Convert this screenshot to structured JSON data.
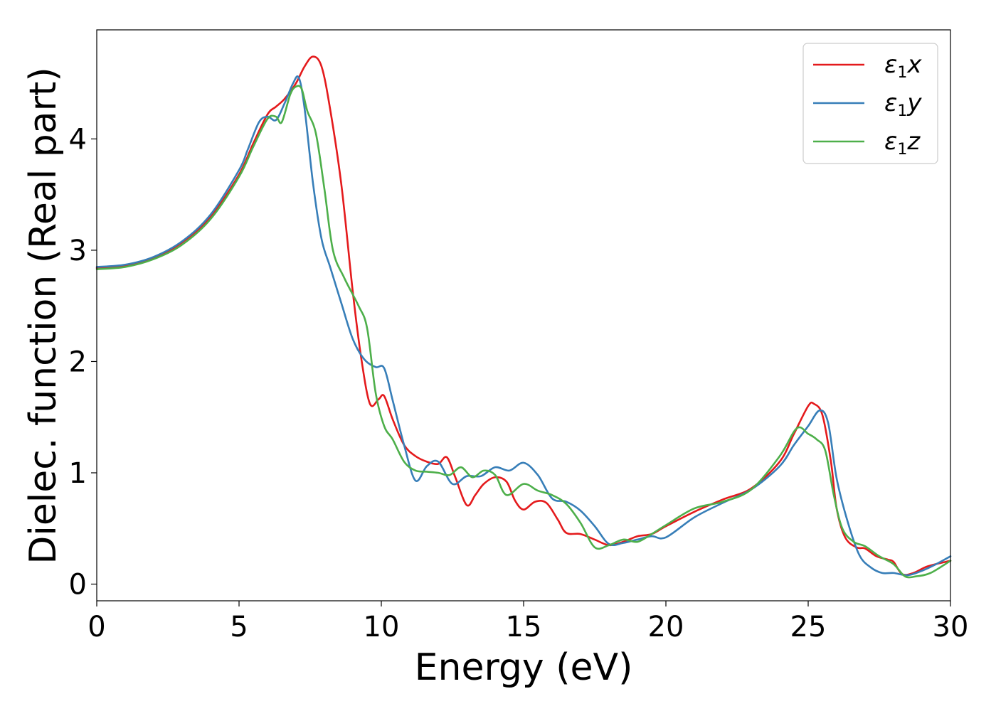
{
  "chart_data": {
    "type": "line",
    "xlabel": "Energy (eV)",
    "ylabel": "Dielec. function (Real part)",
    "xlim": [
      0,
      30
    ],
    "ylim": [
      -0.15,
      4.98
    ],
    "xticks": [
      "0",
      "5",
      "10",
      "15",
      "20",
      "25",
      "30"
    ],
    "yticks": [
      "0",
      "1",
      "2",
      "3",
      "4"
    ],
    "grid": false,
    "legend_position": "top-right",
    "series": [
      {
        "name": "ε1x",
        "label_base": "ε",
        "label_sub": "1",
        "label_suffix": "x",
        "color": "#e41a1c",
        "x": [
          0,
          1,
          2,
          3,
          4,
          5,
          5.5,
          6,
          6.3,
          6.6,
          7,
          7.3,
          7.6,
          7.9,
          8.2,
          8.6,
          9,
          9.3,
          9.6,
          9.9,
          10.1,
          10.4,
          10.8,
          11.2,
          11.6,
          12,
          12.3,
          12.6,
          13,
          13.3,
          13.6,
          14,
          14.4,
          14.7,
          15,
          15.4,
          15.8,
          16.2,
          16.5,
          17,
          17.5,
          18,
          18.5,
          19,
          19.5,
          20,
          21,
          22,
          23,
          24,
          24.5,
          25,
          25.2,
          25.5,
          25.8,
          26,
          26.3,
          26.7,
          27,
          27.4,
          27.8,
          28,
          28.3,
          28.7,
          29.2,
          30
        ],
        "values": [
          2.84,
          2.86,
          2.93,
          3.07,
          3.3,
          3.68,
          3.96,
          4.22,
          4.29,
          4.36,
          4.5,
          4.65,
          4.74,
          4.65,
          4.27,
          3.58,
          2.62,
          2.02,
          1.62,
          1.66,
          1.69,
          1.48,
          1.25,
          1.15,
          1.1,
          1.08,
          1.14,
          0.96,
          0.71,
          0.8,
          0.9,
          0.96,
          0.92,
          0.75,
          0.67,
          0.74,
          0.73,
          0.58,
          0.46,
          0.45,
          0.4,
          0.35,
          0.38,
          0.43,
          0.45,
          0.52,
          0.65,
          0.76,
          0.86,
          1.1,
          1.35,
          1.6,
          1.62,
          1.52,
          1.1,
          0.68,
          0.42,
          0.33,
          0.32,
          0.25,
          0.22,
          0.2,
          0.09,
          0.1,
          0.16,
          0.21
        ]
      },
      {
        "name": "ε1y",
        "label_base": "ε",
        "label_sub": "1",
        "label_suffix": "y",
        "color": "#377eb8",
        "x": [
          0,
          1,
          2,
          3,
          4,
          5,
          5.3,
          5.7,
          6,
          6.3,
          6.6,
          6.9,
          7.1,
          7.3,
          7.6,
          7.9,
          8.2,
          8.6,
          9,
          9.4,
          9.8,
          10.1,
          10.4,
          10.8,
          11.2,
          11.6,
          12,
          12.5,
          13,
          13.5,
          14,
          14.5,
          15,
          15.5,
          16,
          16.5,
          17,
          17.5,
          18,
          18.5,
          19,
          19.5,
          20,
          21,
          22,
          23,
          24,
          24.5,
          25,
          25.4,
          25.7,
          26,
          26.4,
          26.8,
          27.2,
          27.6,
          28,
          28.5,
          29,
          29.5,
          30
        ],
        "values": [
          2.85,
          2.87,
          2.94,
          3.08,
          3.32,
          3.72,
          3.9,
          4.15,
          4.2,
          4.17,
          4.32,
          4.5,
          4.55,
          4.28,
          3.6,
          3.1,
          2.85,
          2.52,
          2.2,
          2.02,
          1.95,
          1.94,
          1.65,
          1.25,
          0.93,
          1.06,
          1.1,
          0.9,
          0.97,
          0.97,
          1.05,
          1.02,
          1.09,
          0.98,
          0.77,
          0.74,
          0.66,
          0.52,
          0.36,
          0.37,
          0.4,
          0.43,
          0.42,
          0.6,
          0.73,
          0.85,
          1.06,
          1.25,
          1.42,
          1.56,
          1.45,
          0.95,
          0.55,
          0.26,
          0.15,
          0.1,
          0.1,
          0.08,
          0.12,
          0.18,
          0.25
        ]
      },
      {
        "name": "ε1z",
        "label_base": "ε",
        "label_sub": "1",
        "label_suffix": "z",
        "color": "#4daf4a",
        "x": [
          0,
          1,
          2,
          3,
          4,
          5,
          5.5,
          6,
          6.3,
          6.5,
          6.8,
          7,
          7.2,
          7.4,
          7.7,
          8,
          8.3,
          8.7,
          9.2,
          9.5,
          9.8,
          10.1,
          10.4,
          10.8,
          11.2,
          11.6,
          12,
          12.4,
          12.8,
          13.2,
          13.6,
          14,
          14.4,
          15,
          15.5,
          16,
          16.5,
          17,
          17.5,
          18,
          18.5,
          19,
          19.5,
          20,
          21,
          22,
          23,
          24,
          24.6,
          25,
          25.3,
          25.6,
          25.9,
          26.2,
          26.6,
          27,
          27.5,
          28,
          28.4,
          28.8,
          29.3,
          30
        ],
        "values": [
          2.83,
          2.85,
          2.92,
          3.05,
          3.28,
          3.66,
          3.93,
          4.18,
          4.2,
          4.15,
          4.4,
          4.47,
          4.45,
          4.25,
          4.05,
          3.55,
          3.0,
          2.75,
          2.5,
          2.3,
          1.72,
          1.42,
          1.3,
          1.1,
          1.02,
          1.01,
          1.0,
          0.98,
          1.05,
          0.96,
          1.02,
          0.98,
          0.8,
          0.9,
          0.84,
          0.8,
          0.72,
          0.55,
          0.33,
          0.35,
          0.4,
          0.38,
          0.45,
          0.53,
          0.68,
          0.74,
          0.85,
          1.15,
          1.4,
          1.35,
          1.3,
          1.2,
          0.8,
          0.5,
          0.38,
          0.34,
          0.25,
          0.18,
          0.07,
          0.07,
          0.1,
          0.21
        ]
      }
    ]
  }
}
